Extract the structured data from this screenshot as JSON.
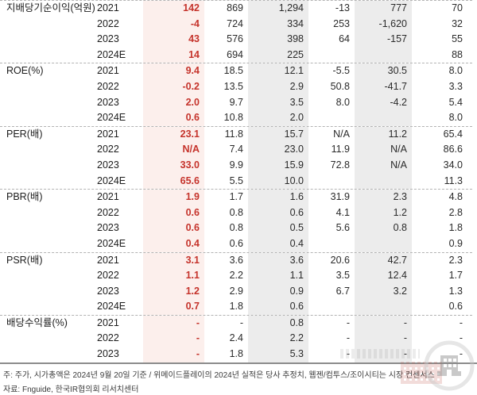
{
  "table": {
    "value_columns_note": "6 unlabeled company columns; column 1 is highlighted estimate column, columns 3 and 5 are shaded",
    "groups": [
      {
        "metric": "지배당기순이익(억원)",
        "rows": [
          {
            "year": "2021",
            "values": [
              "142",
              "869",
              "1,294",
              "-13",
              "777",
              "70"
            ]
          },
          {
            "year": "2022",
            "values": [
              "-4",
              "724",
              "334",
              "253",
              "-1,620",
              "32"
            ]
          },
          {
            "year": "2023",
            "values": [
              "43",
              "576",
              "398",
              "64",
              "-157",
              "55"
            ]
          },
          {
            "year": "2024E",
            "values": [
              "14",
              "694",
              "225",
              "",
              "",
              "88"
            ]
          }
        ]
      },
      {
        "metric": "ROE(%)",
        "rows": [
          {
            "year": "2021",
            "values": [
              "9.4",
              "18.5",
              "12.1",
              "-5.5",
              "30.5",
              "8.0"
            ]
          },
          {
            "year": "2022",
            "values": [
              "-0.2",
              "13.5",
              "2.9",
              "50.8",
              "-41.7",
              "3.3"
            ]
          },
          {
            "year": "2023",
            "values": [
              "2.0",
              "9.7",
              "3.5",
              "8.0",
              "-4.2",
              "5.4"
            ]
          },
          {
            "year": "2024E",
            "values": [
              "0.6",
              "10.8",
              "2.0",
              "",
              "",
              "8.0"
            ]
          }
        ]
      },
      {
        "metric": "PER(배)",
        "rows": [
          {
            "year": "2021",
            "values": [
              "23.1",
              "11.8",
              "15.7",
              "N/A",
              "11.2",
              "65.4"
            ]
          },
          {
            "year": "2022",
            "values": [
              "N/A",
              "7.4",
              "23.0",
              "11.9",
              "N/A",
              "86.6"
            ]
          },
          {
            "year": "2023",
            "values": [
              "33.0",
              "9.9",
              "15.9",
              "72.8",
              "N/A",
              "34.0"
            ]
          },
          {
            "year": "2024E",
            "values": [
              "65.6",
              "5.5",
              "10.0",
              "",
              "",
              "11.3"
            ]
          }
        ]
      },
      {
        "metric": "PBR(배)",
        "rows": [
          {
            "year": "2021",
            "values": [
              "1.9",
              "1.7",
              "1.6",
              "31.9",
              "2.3",
              "4.8"
            ]
          },
          {
            "year": "2022",
            "values": [
              "0.6",
              "0.8",
              "0.6",
              "4.1",
              "1.2",
              "2.8"
            ]
          },
          {
            "year": "2023",
            "values": [
              "0.6",
              "0.8",
              "0.5",
              "5.6",
              "0.8",
              "1.8"
            ]
          },
          {
            "year": "2024E",
            "values": [
              "0.4",
              "0.6",
              "0.4",
              "",
              "",
              "0.9"
            ]
          }
        ]
      },
      {
        "metric": "PSR(배)",
        "rows": [
          {
            "year": "2021",
            "values": [
              "3.1",
              "3.6",
              "3.6",
              "20.6",
              "42.7",
              "2.3"
            ]
          },
          {
            "year": "2022",
            "values": [
              "1.1",
              "2.2",
              "1.1",
              "3.5",
              "12.4",
              "1.7"
            ]
          },
          {
            "year": "2023",
            "values": [
              "1.2",
              "2.9",
              "0.9",
              "6.7",
              "3.2",
              "1.3"
            ]
          },
          {
            "year": "2024E",
            "values": [
              "0.7",
              "1.8",
              "0.6",
              "",
              "",
              "0.6"
            ]
          }
        ]
      },
      {
        "metric": "배당수익률(%)",
        "rows": [
          {
            "year": "2021",
            "values": [
              "-",
              "-",
              "0.8",
              "-",
              "-",
              "-"
            ]
          },
          {
            "year": "2022",
            "values": [
              "-",
              "2.4",
              "2.2",
              "-",
              "-",
              "-"
            ]
          },
          {
            "year": "2023",
            "values": [
              "-",
              "1.8",
              "5.3",
              "-",
              "-",
              "-"
            ]
          }
        ]
      }
    ]
  },
  "notes": {
    "note1": "주:  주가, 시가총액은 2024년 9월 20일 기준 / 위메이드플레이의 2024년 실적은 당사 추정치, 웹젠/컴투스/조이시티는 시장 컨센서스",
    "note2": "자료: Fnguide, 한국IR협의회 리서치센터"
  },
  "colors": {
    "highlight_column_bg": "#fcefec",
    "highlight_column_text": "#c5332b",
    "shaded_column_bg": "#ececec",
    "divider": "#8c8c8c"
  },
  "watermark": {
    "label": "한국IR협의회 building logo watermark"
  }
}
